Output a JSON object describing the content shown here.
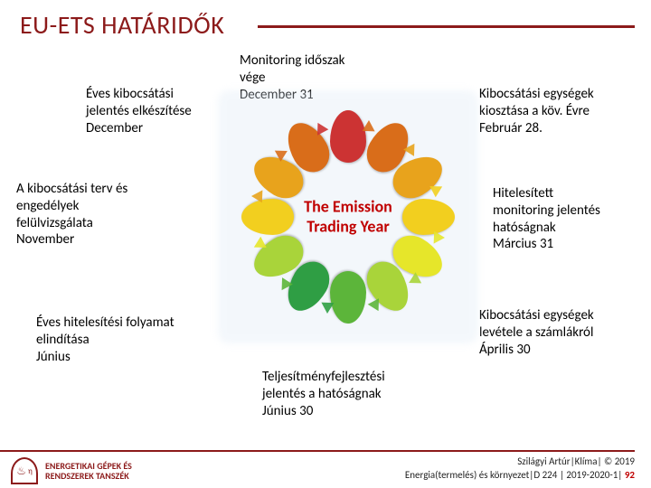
{
  "title": "EU-ETS HATÁRIDŐK",
  "title_color": "#8c1a1a",
  "ring": {
    "center_line1": "The Emission",
    "center_line2": "Trading Year",
    "segments": [
      {
        "angle": 0,
        "color": "#cc3333",
        "arrow": "#d96d1a"
      },
      {
        "angle": 30,
        "color": "#d96d1a",
        "arrow": "#e8a31c"
      },
      {
        "angle": 60,
        "color": "#e8a31c",
        "arrow": "#f2cf1f"
      },
      {
        "angle": 90,
        "color": "#f2cf1f",
        "arrow": "#e6e62a"
      },
      {
        "angle": 120,
        "color": "#e6e62a",
        "arrow": "#a9d43a"
      },
      {
        "angle": 150,
        "color": "#a9d43a",
        "arrow": "#5cb53a"
      },
      {
        "angle": 180,
        "color": "#5cb53a",
        "arrow": "#2f9e44"
      },
      {
        "angle": 210,
        "color": "#2f9e44",
        "arrow": "#5cb53a"
      },
      {
        "angle": 240,
        "color": "#a9d43a",
        "arrow": "#e6e62a"
      },
      {
        "angle": 270,
        "color": "#f2cf1f",
        "arrow": "#e8a31c"
      },
      {
        "angle": 300,
        "color": "#e8a31c",
        "arrow": "#d96d1a"
      },
      {
        "angle": 330,
        "color": "#d96d1a",
        "arrow": "#cc3333"
      }
    ]
  },
  "annotations": {
    "top": "Monitoring időszak\nvége\nDecember 31",
    "topLeft": "Éves kibocsátási\njelentés elkészítése\nDecember",
    "topRight": "Kibocsátási egységek\nkiosztása a köv. Évre\nFebruár 28.",
    "left": "A kibocsátási terv és\nengedélyek\nfelülvizsgálata\nNovember",
    "right": "Hitelesített\nmonitoring jelentés\nhatóságnak\nMárcius 31",
    "botLeft": "Éves hitelesítési folyamat\nelindítása\nJúnius",
    "botRight": "Kibocsátási egységek\nlevétele a számlákról\nÁprilis 30",
    "bottom": "Teljesítményfejlesztési\njelentés a hatóságnak\nJúnius 30"
  },
  "footer": {
    "line1": "Szilágyi Artúr|Klíma| © 2019",
    "line2_pre": "Energia(termelés) és környezet|D 224 | 2019-2020-1| ",
    "page": "92",
    "logo_line1": "ENERGETIKAI GÉPEK ÉS",
    "logo_line2": "RENDSZEREK TANSZÉK"
  }
}
